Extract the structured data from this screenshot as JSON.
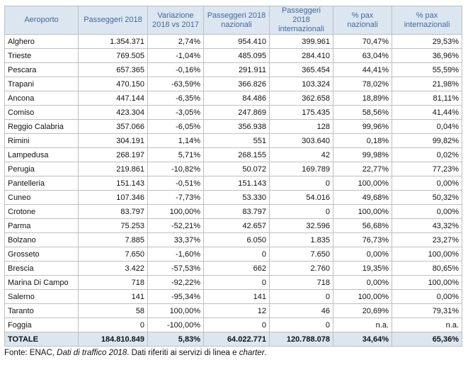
{
  "table": {
    "header": [
      "Aeroporto",
      "Passeggeri 2018",
      "Variazione 2018 vs 2017",
      "Passeggeri 2018 nazionali",
      "Passeggeri 2018 internazionali",
      "% pax nazionali",
      "% pax internazionali"
    ],
    "rows": [
      [
        "Alghero",
        "1.354.371",
        "2,74%",
        "954.410",
        "399.961",
        "70,47%",
        "29,53%"
      ],
      [
        "Trieste",
        "769.505",
        "-1,04%",
        "485.095",
        "284.410",
        "63,04%",
        "36,96%"
      ],
      [
        "Pescara",
        "657.365",
        "-0,16%",
        "291.911",
        "365.454",
        "44,41%",
        "55,59%"
      ],
      [
        "Trapani",
        "470.150",
        "-63,59%",
        "366.826",
        "103.324",
        "78,02%",
        "21,98%"
      ],
      [
        "Ancona",
        "447.144",
        "-6,35%",
        "84.486",
        "362.658",
        "18,89%",
        "81,11%"
      ],
      [
        "Comiso",
        "423.304",
        "-3,05%",
        "247.869",
        "175.435",
        "58,56%",
        "41,44%"
      ],
      [
        "Reggio Calabria",
        "357.066",
        "-6,05%",
        "356.938",
        "128",
        "99,96%",
        "0,04%"
      ],
      [
        "Rimini",
        "304.191",
        "1,14%",
        "551",
        "303.640",
        "0,18%",
        "99,82%"
      ],
      [
        "Lampedusa",
        "268.197",
        "5,71%",
        "268.155",
        "42",
        "99,98%",
        "0,02%"
      ],
      [
        "Perugia",
        "219.861",
        "-10,82%",
        "50.072",
        "169.789",
        "22,77%",
        "77,23%"
      ],
      [
        "Pantelleria",
        "151.143",
        "-0,51%",
        "151.143",
        "0",
        "100,00%",
        "0,00%"
      ],
      [
        "Cuneo",
        "107.346",
        "-7,73%",
        "53.330",
        "54.016",
        "49,68%",
        "50,32%"
      ],
      [
        "Crotone",
        "83.797",
        "100,00%",
        "83.797",
        "0",
        "100,00%",
        "0,00%"
      ],
      [
        "Parma",
        "75.253",
        "-52,21%",
        "42.657",
        "32.596",
        "56,68%",
        "43,32%"
      ],
      [
        "Bolzano",
        "7.885",
        "33,37%",
        "6.050",
        "1.835",
        "76,73%",
        "23,27%"
      ],
      [
        "Grosseto",
        "7.650",
        "-1,60%",
        "0",
        "7.650",
        "0,00%",
        "100,00%"
      ],
      [
        "Brescia",
        "3.422",
        "-57,53%",
        "662",
        "2.760",
        "19,35%",
        "80,65%"
      ],
      [
        "Marina Di Campo",
        "718",
        "-92,22%",
        "0",
        "718",
        "0,00%",
        "100,00%"
      ],
      [
        "Salerno",
        "141",
        "-95,34%",
        "141",
        "0",
        "100,00%",
        "0,00%"
      ],
      [
        "Taranto",
        "58",
        "100,00%",
        "12",
        "46",
        "20,69%",
        "79,31%"
      ],
      [
        "Foggia",
        "0",
        "-100,00%",
        "0",
        "0",
        "n.a.",
        "n.a."
      ]
    ],
    "total": [
      "TOTALE",
      "184.810.849",
      "5,83%",
      "64.022.771",
      "120.788.078",
      "34,64%",
      "65,36%"
    ]
  },
  "source": {
    "prefix": "Fonte: ENAC, ",
    "title": "Dati di traffico 2018",
    "middle": ". Dati riferiti ai servizi di linea e ",
    "term": "charter",
    "end": "."
  }
}
